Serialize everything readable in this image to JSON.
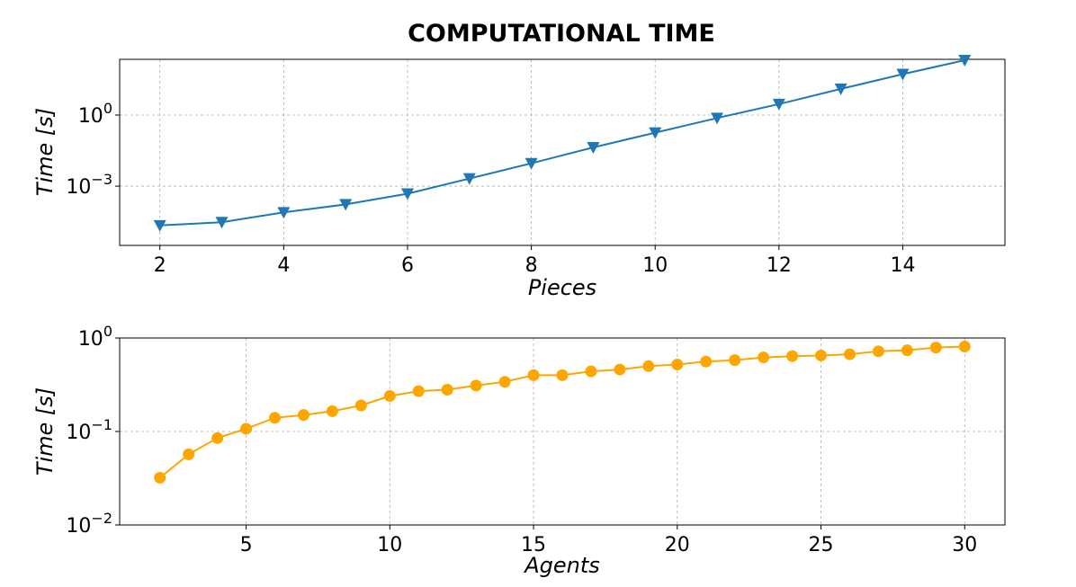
{
  "title": "COMPUTATIONAL TIME",
  "chart_data": [
    {
      "type": "line",
      "xlabel": "Pieces",
      "ylabel": "Time [s]",
      "yscale": "log",
      "xlim": [
        1.35,
        15.65
      ],
      "ylim_log10": [
        -5.5,
        2.35
      ],
      "xticks": [
        2,
        4,
        6,
        8,
        10,
        12,
        14
      ],
      "yticks": [
        {
          "exp": 0,
          "label": "10",
          "sup": "0"
        },
        {
          "exp": -3,
          "label": "10",
          "sup": "−3"
        }
      ],
      "grid": true,
      "color": "#1f77b4",
      "marker": "triangle-down",
      "x": [
        2,
        3,
        4,
        5,
        6,
        7,
        8,
        9,
        10,
        11,
        12,
        13,
        14,
        15
      ],
      "y": [
        2.2e-05,
        3e-05,
        7.8e-05,
        0.00017,
        0.00048,
        0.0021,
        0.0092,
        0.043,
        0.18,
        0.75,
        2.9,
        12.7,
        53,
        206
      ]
    },
    {
      "type": "line",
      "xlabel": "Agents",
      "ylabel": "Time [s]",
      "yscale": "log",
      "xlim": [
        0.6,
        31.4
      ],
      "ylim_log10": [
        -2,
        0
      ],
      "xticks": [
        5,
        10,
        15,
        20,
        25,
        30
      ],
      "yticks": [
        {
          "exp": 0,
          "label": "10",
          "sup": "0"
        },
        {
          "exp": -1,
          "label": "10",
          "sup": "−1"
        },
        {
          "exp": -2,
          "label": "10",
          "sup": "−2"
        }
      ],
      "grid": true,
      "color": "#ffa500",
      "marker": "circle",
      "x": [
        2,
        3,
        4,
        5,
        6,
        7,
        8,
        9,
        10,
        11,
        12,
        13,
        14,
        15,
        16,
        17,
        18,
        19,
        20,
        21,
        22,
        23,
        24,
        25,
        26,
        27,
        28,
        29,
        30
      ],
      "y": [
        0.032,
        0.057,
        0.085,
        0.107,
        0.14,
        0.15,
        0.165,
        0.19,
        0.24,
        0.27,
        0.28,
        0.31,
        0.34,
        0.4,
        0.4,
        0.44,
        0.46,
        0.5,
        0.52,
        0.56,
        0.58,
        0.62,
        0.64,
        0.65,
        0.67,
        0.72,
        0.74,
        0.79,
        0.81
      ]
    }
  ]
}
